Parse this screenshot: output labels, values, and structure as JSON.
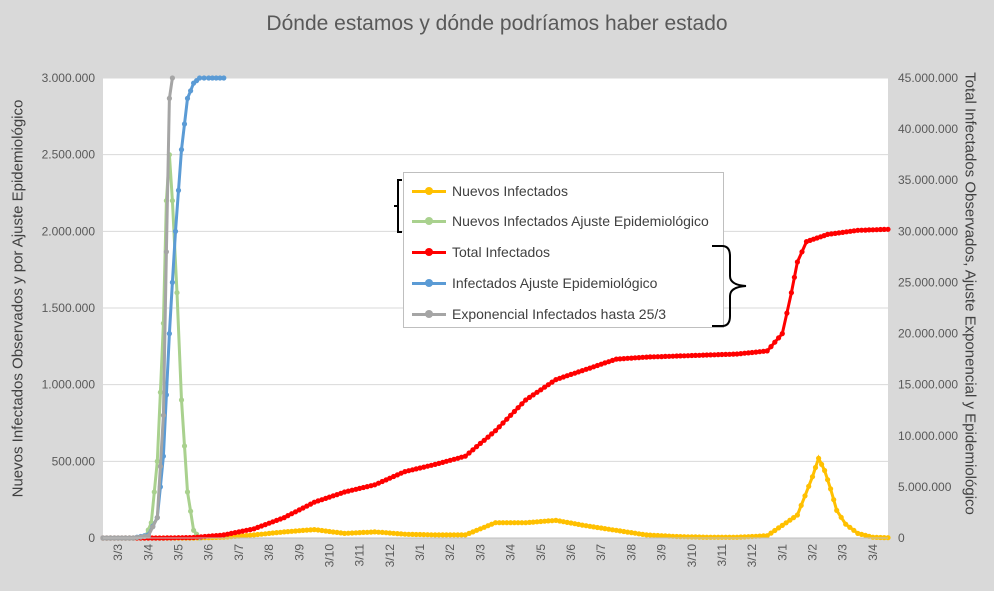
{
  "title": "Dónde estamos y dónde podríamos haber estado",
  "ylabel_left": "Nuevos Infectados Observados y por Ajuste Epidemiológico",
  "ylabel_right": "Total Infectados Observados, Ajuste Exponencial y Epidemiológico",
  "legend": [
    {
      "label": "Nuevos Infectados",
      "color": "#ffc000"
    },
    {
      "label": "Nuevos Infectados Ajuste Epidemiológico",
      "color": "#a9d18e"
    },
    {
      "label": "Total Infectados",
      "color": "#ff0000"
    },
    {
      "label": "Infectados Ajuste Epidemiológico",
      "color": "#5b9bd5"
    },
    {
      "label": "Exponencial Infectados hasta 25/3",
      "color": "#a5a5a5"
    }
  ],
  "chart_data": {
    "type": "line",
    "x_tick_labels": [
      "3/3",
      "3/4",
      "3/5",
      "3/6",
      "3/7",
      "3/8",
      "3/9",
      "3/10",
      "3/11",
      "3/12",
      "3/1",
      "3/2",
      "3/3",
      "3/4",
      "3/5",
      "3/6",
      "3/7",
      "3/8",
      "3/9",
      "3/10",
      "3/11",
      "3/12",
      "3/1",
      "3/2",
      "3/3",
      "3/4"
    ],
    "y_left_ticks": [
      "0",
      "500.000",
      "1.000.000",
      "1.500.000",
      "2.000.000",
      "2.500.000",
      "3.000.000"
    ],
    "y_right_ticks": [
      "0",
      "5.000.000",
      "10.000.000",
      "15.000.000",
      "20.000.000",
      "25.000.000",
      "30.000.000",
      "35.000.000",
      "40.000.000",
      "45.000.000"
    ],
    "ylim_left": [
      0,
      3000000
    ],
    "ylim_right": [
      0,
      45000000
    ],
    "grid": true,
    "legend_position": "center",
    "series": [
      {
        "name": "Nuevos Infectados",
        "axis": "left",
        "color": "#ffc000",
        "x": [
          0,
          3,
          4,
          5,
          6,
          7,
          8,
          9,
          10,
          11,
          12,
          13,
          14,
          15,
          16,
          17,
          18,
          19,
          20,
          21,
          22,
          23,
          23.5,
          23.7,
          23.9,
          24.1,
          24.3,
          24.6,
          25,
          25.5,
          26
        ],
        "y": [
          0,
          0,
          5000,
          20000,
          40000,
          55000,
          30000,
          40000,
          25000,
          20000,
          20000,
          100000,
          100000,
          115000,
          80000,
          50000,
          20000,
          10000,
          5000,
          5000,
          15000,
          150000,
          400000,
          520000,
          440000,
          320000,
          180000,
          90000,
          30000,
          5000,
          2000
        ]
      },
      {
        "name": "Nuevos Infectados Ajuste Epidemiológico",
        "axis": "left",
        "color": "#a9d18e",
        "x": [
          0,
          1,
          1.4,
          1.6,
          1.8,
          2.0,
          2.1,
          2.2,
          2.3,
          2.45,
          2.6,
          2.8,
          3.0,
          3.2
        ],
        "y": [
          0,
          0,
          5000,
          100000,
          500000,
          1400000,
          2200000,
          2500000,
          2200000,
          1600000,
          900000,
          300000,
          50000,
          0
        ]
      },
      {
        "name": "Total Infectados",
        "axis": "right",
        "color": "#ff0000",
        "x": [
          0,
          2,
          3,
          4,
          5,
          6,
          7,
          8,
          9,
          10,
          11,
          12,
          13,
          14,
          15,
          16,
          17,
          18,
          19,
          20,
          21,
          22,
          22.5,
          22.8,
          23,
          23.3,
          24,
          25,
          26
        ],
        "y": [
          0,
          0,
          50000,
          300000,
          900000,
          2000000,
          3500000,
          4500000,
          5200000,
          6500000,
          7200000,
          8000000,
          10500000,
          13500000,
          15500000,
          16500000,
          17500000,
          17700000,
          17800000,
          17900000,
          18000000,
          18300000,
          20000000,
          24000000,
          27000000,
          29000000,
          29700000,
          30100000,
          30200000
        ]
      },
      {
        "name": "Infectados Ajuste Epidemiológico",
        "axis": "right",
        "color": "#5b9bd5",
        "x": [
          0,
          1,
          1.5,
          1.8,
          2.0,
          2.2,
          2.4,
          2.6,
          2.8,
          3.0,
          3.2,
          3.5,
          4.0
        ],
        "y": [
          0,
          0,
          300000,
          2000000,
          8000000,
          20000000,
          30000000,
          38000000,
          43000000,
          44500000,
          45000000,
          45100000,
          45100000
        ]
      },
      {
        "name": "Exponencial Infectados hasta 25/3",
        "axis": "right",
        "color": "#a5a5a5",
        "x": [
          0,
          1,
          1.5,
          1.8,
          2.0,
          2.1,
          2.2,
          2.3
        ],
        "y": [
          0,
          0,
          200000,
          2000000,
          12000000,
          28000000,
          43000000,
          45000000
        ]
      }
    ]
  }
}
